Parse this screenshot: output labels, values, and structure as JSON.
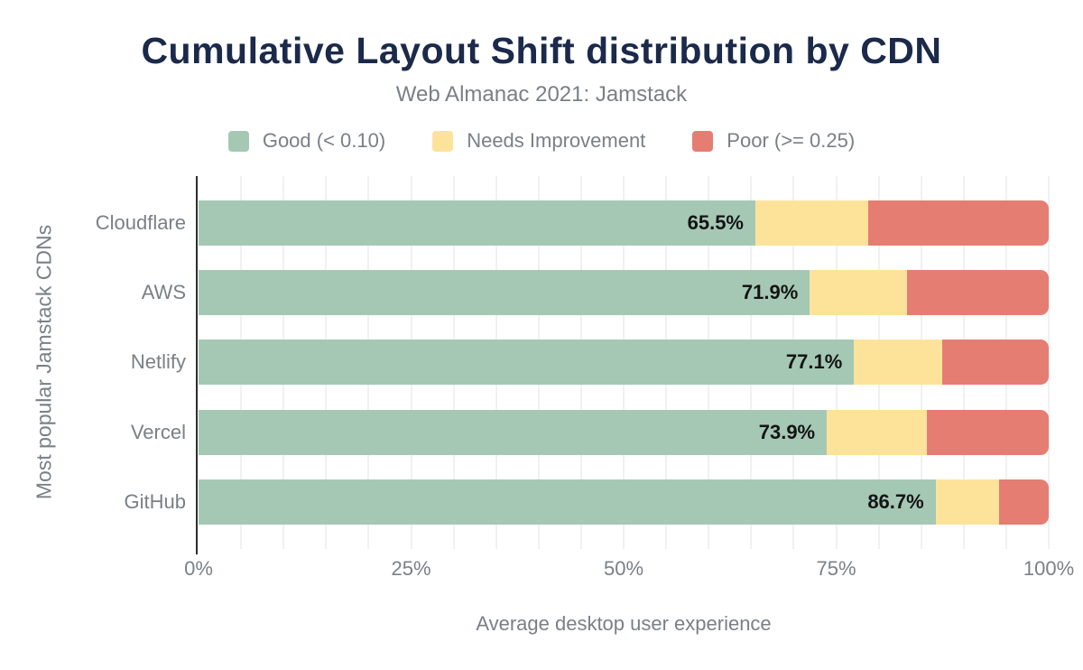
{
  "style": {
    "background": "#ffffff",
    "title_color": "#1b2a4a",
    "text_color": "#7a8087",
    "data_label_color": "#141414",
    "grid_color": "#f0f1f3",
    "axis_color": "#2d2d2d"
  },
  "header": {
    "title": "Cumulative Layout Shift distribution by CDN",
    "subtitle": "Web Almanac 2021: Jamstack"
  },
  "legend": [
    {
      "label": "Good (< 0.10)",
      "color": "#a5c8b5"
    },
    {
      "label": "Needs Improvement",
      "color": "#fde39a"
    },
    {
      "label": "Poor (>= 0.25)",
      "color": "#e57d73"
    }
  ],
  "chart_data": {
    "type": "bar",
    "orientation": "horizontal",
    "stacked": true,
    "title": "Cumulative Layout Shift distribution by CDN",
    "subtitle": "Web Almanac 2021: Jamstack",
    "xlabel": "Average desktop user experience",
    "ylabel": "Most popular Jamstack CDNs",
    "categories": [
      "Cloudflare",
      "AWS",
      "Netlify",
      "Vercel",
      "GitHub"
    ],
    "series": [
      {
        "name": "Good (< 0.10)",
        "color": "#a5c8b5",
        "values": [
          65.5,
          71.9,
          77.1,
          73.9,
          86.7
        ],
        "data_labels": [
          "65.5%",
          "71.9%",
          "77.1%",
          "73.9%",
          "86.7%"
        ]
      },
      {
        "name": "Needs Improvement",
        "color": "#fde39a",
        "values": [
          13.3,
          11.4,
          10.4,
          11.8,
          7.5
        ]
      },
      {
        "name": "Poor (>= 0.25)",
        "color": "#e57d73",
        "values": [
          21.2,
          16.7,
          12.5,
          14.3,
          5.8
        ]
      }
    ],
    "x_ticks": [
      "0%",
      "25%",
      "50%",
      "75%",
      "100%"
    ],
    "xlim": [
      0,
      100
    ],
    "grid": {
      "vertical": true,
      "step_pct": 5
    },
    "legend_position": "top"
  }
}
